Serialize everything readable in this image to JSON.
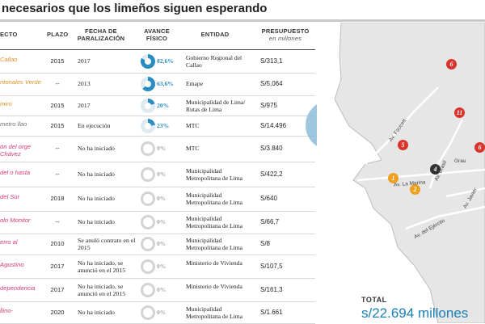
{
  "title": "necesarios que los limeños siguen esperando",
  "headers": {
    "proyecto": "ECTO",
    "plazo": "PLAZO",
    "fecha": "FECHA DE PARALIZACIÓN",
    "avance": "AVANCE FÍSICO",
    "entidad": "ENTIDAD",
    "presupuesto": "PRESUPUESTO",
    "presupuesto_sub": "en millones"
  },
  "rows": [
    {
      "proyecto": "Callao",
      "proyecto_color": "#e0932a",
      "plazo": "2015",
      "fecha": "2017",
      "avance": "82,6%",
      "avance_value": 82.6,
      "entidad": "Gobierno Regional del Callao",
      "presupuesto": "S/313,1"
    },
    {
      "proyecto": "ntonales Verde",
      "proyecto_color": "#e0932a",
      "plazo": "--",
      "fecha": "2013",
      "avance": "63,6%",
      "avance_value": 63.6,
      "entidad": "Emape",
      "presupuesto": "S/5,064"
    },
    {
      "proyecto": "mirо",
      "proyecto_color": "#e0932a",
      "plazo": "2015",
      "fecha": "2017",
      "avance": "20%",
      "avance_value": 20,
      "entidad": "Municipalidad de Lima/ Rutas de Lima",
      "presupuesto": "S/975"
    },
    {
      "proyecto": "metro llao",
      "proyecto_color": "#777777",
      "plazo": "2015",
      "fecha": "En ejecución",
      "avance": "23%",
      "avance_value": 23,
      "entidad": "MTC",
      "presupuesto": "S/14.496"
    },
    {
      "proyecto": "ón del orge Chávez",
      "proyecto_color": "#d63a7a",
      "plazo": "--",
      "fecha": "No ha iniciado",
      "avance": "0%",
      "avance_value": 0,
      "entidad": "MTC",
      "presupuesto": "S/3.840"
    },
    {
      "proyecto": "del o hasta",
      "proyecto_color": "#d63a7a",
      "plazo": "--",
      "fecha": "No ha iniciado",
      "avance": "0%",
      "avance_value": 0,
      "entidad": "Municipalidad Metropolitana de Lima",
      "presupuesto": "S/422,2"
    },
    {
      "proyecto": "del Sur",
      "proyecto_color": "#d63a7a",
      "plazo": "2018",
      "fecha": "No ha iniciado",
      "avance": "0%",
      "avance_value": 0,
      "entidad": "Municipalidad Metropolitana de Lima",
      "presupuesto": "S/640"
    },
    {
      "proyecto": "olo Monitor",
      "proyecto_color": "#d63a7a",
      "plazo": "--",
      "fecha": "No ha iniciado",
      "avance": "0%",
      "avance_value": 0,
      "entidad": "Municipalidad Metropolitana de Lima",
      "presupuesto": "S/66,7"
    },
    {
      "proyecto": "erro al",
      "proyecto_color": "#d63a7a",
      "plazo": "2010",
      "fecha": "Se anuló contrato en el 2015",
      "avance": "0%",
      "avance_value": 0,
      "entidad": "Municipalidad Metropolitana de Lima",
      "presupuesto": "S/8"
    },
    {
      "proyecto": "Agustino",
      "proyecto_color": "#d63a7a",
      "plazo": "2017",
      "fecha": "No ha iniciado, se anunció en el 2015",
      "avance": "0%",
      "avance_value": 0,
      "entidad": "Ministerio de Vivienda",
      "presupuesto": "S/107,5"
    },
    {
      "proyecto": "dependencia",
      "proyecto_color": "#d63a7a",
      "plazo": "2017",
      "fecha": "No ha iniciado, se anunció en el 2015",
      "avance": "0%",
      "avance_value": 0,
      "entidad": "Ministerio de Vivienda",
      "presupuesto": "S/161,3"
    },
    {
      "proyecto": "llino-",
      "proyecto_color": "#d63a7a",
      "plazo": "2020",
      "fecha": "No ha iniciado",
      "avance": "0%",
      "avance_value": 0,
      "entidad": "Municipalidad Metropolitana de Lima",
      "presupuesto": "S/1.661"
    }
  ],
  "map": {
    "markers": [
      {
        "label": "6",
        "color": "#d9342b"
      },
      {
        "label": "11",
        "color": "#d9342b"
      },
      {
        "label": "5",
        "color": "#d9342b"
      },
      {
        "label": "4",
        "color": "#333333"
      },
      {
        "label": "1",
        "color": "#f0a020"
      },
      {
        "label": "2",
        "color": "#f0a020"
      },
      {
        "label": "6",
        "color": "#d9342b"
      }
    ],
    "streets": [
      "Av. Faucett",
      "Av. La Marina",
      "Av. Brasil",
      "Av. Javier",
      "Av. del Ejército",
      "Grau"
    ]
  },
  "total": {
    "label": "TOTAL",
    "value": "s/22.694 millones"
  },
  "colors": {
    "accent": "#2b8cc4",
    "bubble": "#8dbcd8",
    "marker_red": "#d9342b",
    "marker_orange": "#f0a020"
  }
}
